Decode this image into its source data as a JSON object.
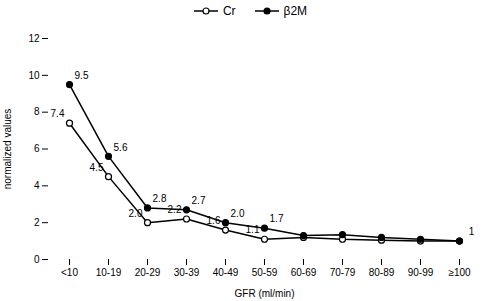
{
  "chart_data": {
    "type": "line",
    "categories": [
      "<10",
      "10-19",
      "20-29",
      "30-39",
      "40-49",
      "50-59",
      "60-69",
      "70-79",
      "80-89",
      "90-99",
      "≥100"
    ],
    "series": [
      {
        "name": "Cr",
        "color": "#000000",
        "marker": "open_circle",
        "values": [
          7.4,
          4.5,
          2.0,
          2.2,
          1.6,
          1.1,
          1.2,
          1.1,
          1.05,
          1.0,
          1.0
        ],
        "value_labels": [
          "7.4",
          "4.5",
          "2.0",
          "2.2",
          "1.6",
          "1.1",
          null,
          null,
          null,
          null,
          null
        ]
      },
      {
        "name": "β2M",
        "color": "#000000",
        "marker": "circle",
        "values": [
          9.5,
          5.6,
          2.8,
          2.7,
          2.0,
          1.7,
          1.3,
          1.35,
          1.2,
          1.1,
          1.0
        ],
        "value_labels": [
          "9.5",
          "5.6",
          "2.8",
          "2.7",
          "2.0",
          "1.7",
          null,
          null,
          null,
          null,
          "1"
        ]
      }
    ],
    "xlabel": "GFR (ml/min)",
    "ylabel": "normalized values",
    "ylim": [
      0,
      12
    ],
    "yticks": [
      0,
      2,
      4,
      6,
      8,
      10,
      12
    ],
    "grid": false,
    "legend": "top"
  }
}
